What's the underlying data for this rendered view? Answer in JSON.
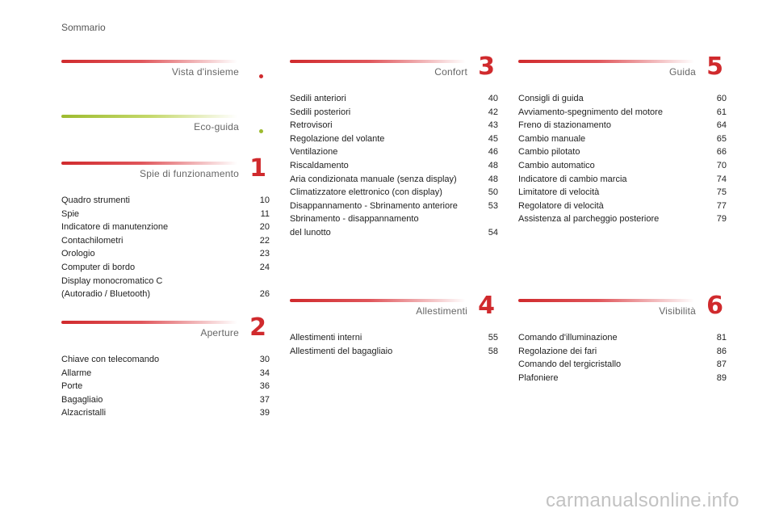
{
  "page_title": "Sommario",
  "accent_color": "#d02a2d",
  "eco_color": "#9dbb2f",
  "sections": [
    {
      "id": "vista",
      "title": "Vista d'insieme",
      "number": "",
      "marker": "red-dot",
      "items": []
    },
    {
      "id": "eco",
      "title": "Eco-guida",
      "number": "",
      "marker": "green-dot",
      "items": []
    },
    {
      "id": "s1",
      "title": "Spie di funzionamento",
      "number": "1",
      "items": [
        {
          "label": "Quadro strumenti",
          "page": "10"
        },
        {
          "label": "Spie",
          "page": "11"
        },
        {
          "label": "Indicatore di manutenzione",
          "page": "20"
        },
        {
          "label": "Contachilometri",
          "page": "22"
        },
        {
          "label": "Orologio",
          "page": "23"
        },
        {
          "label": "Computer di bordo",
          "page": "24"
        },
        {
          "label": "Display monocromatico C\n   (Autoradio / Bluetooth)",
          "page": "26"
        }
      ]
    },
    {
      "id": "s2",
      "title": "Aperture",
      "number": "2",
      "items": [
        {
          "label": "Chiave con telecomando",
          "page": "30"
        },
        {
          "label": "Allarme",
          "page": "34"
        },
        {
          "label": "Porte",
          "page": "36"
        },
        {
          "label": "Bagagliaio",
          "page": "37"
        },
        {
          "label": "Alzacristalli",
          "page": "39"
        }
      ]
    },
    {
      "id": "s3",
      "title": "Confort",
      "number": "3",
      "items": [
        {
          "label": "Sedili anteriori",
          "page": "40"
        },
        {
          "label": "Sedili posteriori",
          "page": "42"
        },
        {
          "label": "Retrovisori",
          "page": "43"
        },
        {
          "label": "Regolazione del volante",
          "page": "45"
        },
        {
          "label": "Ventilazione",
          "page": "46"
        },
        {
          "label": "Riscaldamento",
          "page": "48"
        },
        {
          "label": "Aria condizionata manuale (senza display)",
          "page": "48"
        },
        {
          "label": "Climatizzatore elettronico (con display)",
          "page": "50"
        },
        {
          "label": "Disappannamento - Sbrinamento anteriore",
          "page": "53"
        },
        {
          "label": "Sbrinamento - disappannamento\n   del lunotto",
          "page": "54"
        }
      ]
    },
    {
      "id": "s4",
      "title": "Allestimenti",
      "number": "4",
      "items": [
        {
          "label": "Allestimenti interni",
          "page": "55"
        },
        {
          "label": "Allestimenti del bagagliaio",
          "page": "58"
        }
      ]
    },
    {
      "id": "s5",
      "title": "Guida",
      "number": "5",
      "items": [
        {
          "label": "Consigli di guida",
          "page": "60"
        },
        {
          "label": "Avviamento-spegnimento del motore",
          "page": "61"
        },
        {
          "label": "Freno di stazionamento",
          "page": "64"
        },
        {
          "label": "Cambio manuale",
          "page": "65"
        },
        {
          "label": "Cambio pilotato",
          "page": "66"
        },
        {
          "label": "Cambio automatico",
          "page": "70"
        },
        {
          "label": "Indicatore di cambio marcia",
          "page": "74"
        },
        {
          "label": "Limitatore di velocità",
          "page": "75"
        },
        {
          "label": "Regolatore di velocità",
          "page": "77"
        },
        {
          "label": "Assistenza al parcheggio posteriore",
          "page": "79"
        }
      ]
    },
    {
      "id": "s6",
      "title": "Visibilità",
      "number": "6",
      "items": [
        {
          "label": "Comando d'illuminazione",
          "page": "81"
        },
        {
          "label": "Regolazione dei fari",
          "page": "86"
        },
        {
          "label": "Comando del tergicristallo",
          "page": "87"
        },
        {
          "label": "Plafoniere",
          "page": "89"
        }
      ]
    }
  ],
  "watermark": "carmanualsonline.info"
}
